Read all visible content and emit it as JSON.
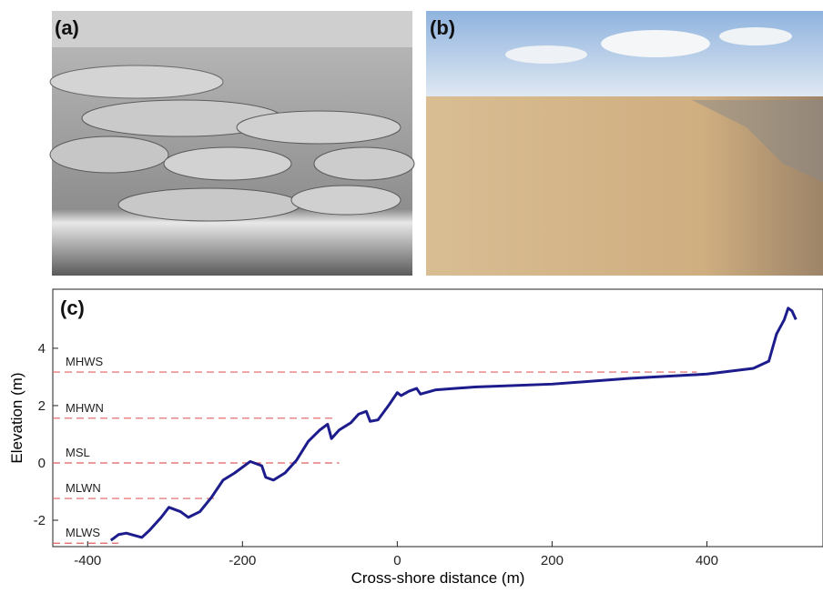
{
  "panels": [
    "(a)",
    "(b)"
  ],
  "chart_data": {
    "type": "line",
    "panel_label": "(c)",
    "x_label": "Cross-shore distance (m)",
    "y_label": "Elevation (m)",
    "xlim": [
      -445,
      550
    ],
    "ylim": [
      -2.92,
      6.06
    ],
    "xticks": [
      -400,
      -200,
      0,
      200,
      400
    ],
    "yticks": [
      -2,
      0,
      2,
      4
    ],
    "series": [
      {
        "color": "#1c1c8c",
        "x": [
          -370,
          -360,
          -350,
          -330,
          -320,
          -305,
          -295,
          -280,
          -270,
          -255,
          -240,
          -225,
          -210,
          -190,
          -175,
          -170,
          -160,
          -145,
          -130,
          -115,
          -100,
          -90,
          -85,
          -75,
          -60,
          -50,
          -40,
          -35,
          -25,
          -10,
          0,
          5,
          15,
          25,
          30,
          50,
          100,
          200,
          300,
          400,
          460,
          480,
          490,
          500,
          505,
          510,
          515
        ],
        "values": [
          -2.7,
          -2.5,
          -2.45,
          -2.6,
          -2.35,
          -1.9,
          -1.55,
          -1.7,
          -1.9,
          -1.7,
          -1.2,
          -0.6,
          -0.35,
          0.05,
          -0.1,
          -0.5,
          -0.6,
          -0.35,
          0.1,
          0.75,
          1.15,
          1.35,
          0.85,
          1.15,
          1.4,
          1.7,
          1.8,
          1.45,
          1.5,
          2.05,
          2.45,
          2.35,
          2.5,
          2.6,
          2.4,
          2.55,
          2.65,
          2.75,
          2.95,
          3.1,
          3.3,
          3.55,
          4.5,
          5.0,
          5.4,
          5.3,
          5.0
        ]
      }
    ],
    "levels": [
      {
        "name": "MHWS",
        "value": 3.17,
        "x_end": 387
      },
      {
        "name": "MHWN",
        "value": 1.56,
        "x_end": -78
      },
      {
        "name": "MSL",
        "value": 0,
        "x_end": -75
      },
      {
        "name": "MLWN",
        "value": -1.24,
        "x_end": -233
      },
      {
        "name": "MLWS",
        "value": -2.8,
        "x_end": -360
      }
    ],
    "level_color": "#e06060"
  }
}
